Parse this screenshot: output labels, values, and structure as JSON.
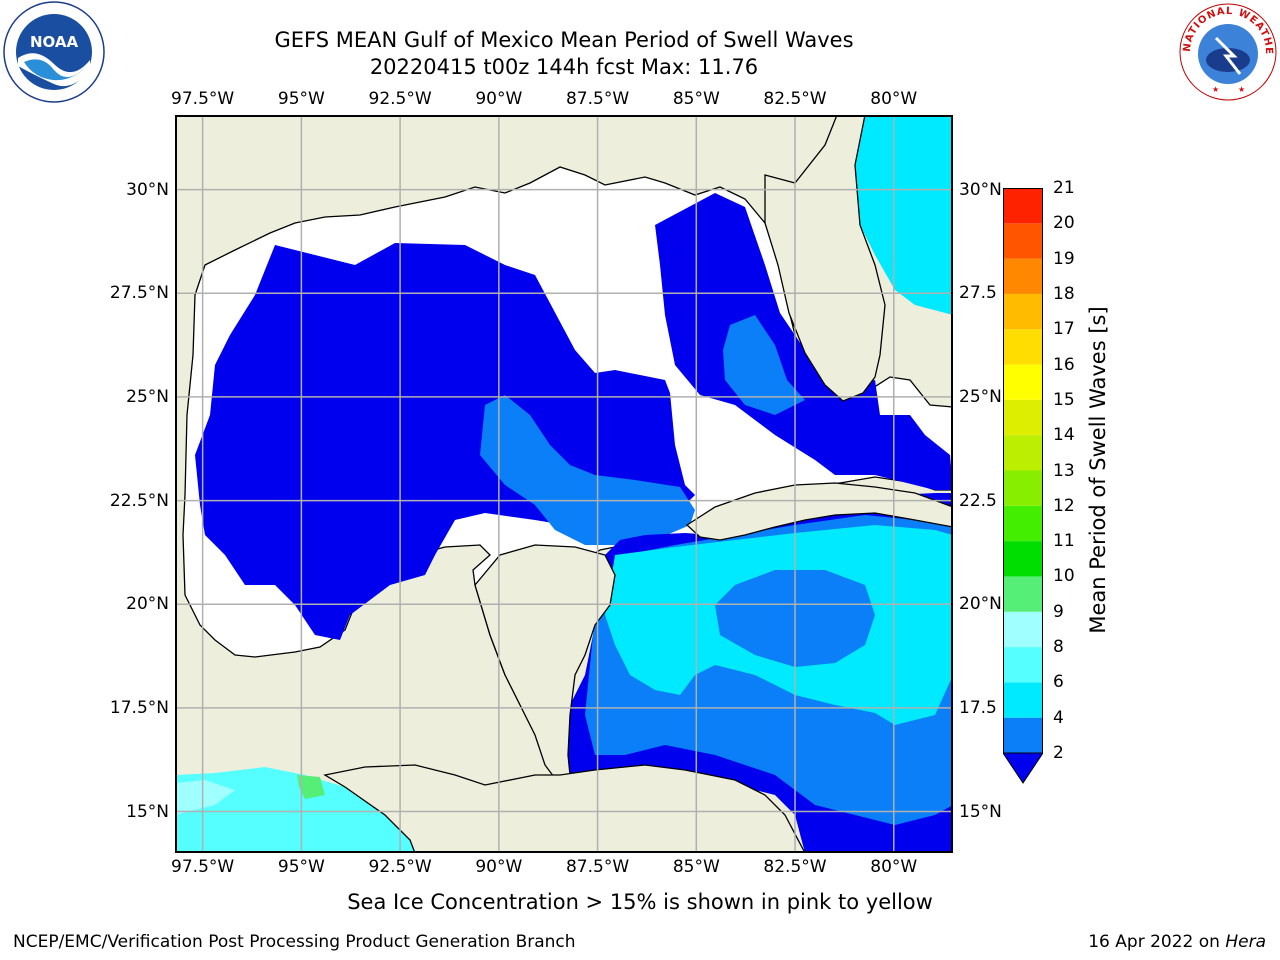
{
  "header": {
    "title_line1": "GEFS MEAN Gulf of Mexico Mean Period of Swell Waves",
    "title_line2": "20220415 t00z 144h fcst   Max: 11.76"
  },
  "logos": {
    "left": "NOAA",
    "right": "NATIONAL WEATHER SERVICE"
  },
  "map": {
    "lon_labels": [
      "97.5°W",
      "95°W",
      "92.5°W",
      "90°W",
      "87.5°W",
      "85°W",
      "82.5°W",
      "80°W"
    ],
    "lon_values": [
      -97.5,
      -95,
      -92.5,
      -90,
      -87.5,
      -85,
      -82.5,
      -80
    ],
    "lat_labels": [
      "30°N",
      "27.5°N",
      "25°N",
      "22.5°N",
      "20°N",
      "17.5°N",
      "15°N"
    ],
    "lat_labels_right": [
      "30°N",
      "27.5",
      "25°N",
      "22.5",
      "20°N",
      "17.5",
      "15°N"
    ],
    "lat_values": [
      30,
      27.5,
      25,
      22.5,
      20,
      17.5,
      15
    ],
    "extent": {
      "lon_min": -98.2,
      "lon_max": -78.5,
      "lat_min": 14.0,
      "lat_max": 31.8
    },
    "colors": {
      "land": "#eeeedc",
      "ocean_no_data": "#ffffff",
      "grid": "#b0b0b0",
      "coast": "#000000"
    }
  },
  "colorbar": {
    "label": "Mean Period of Swell Waves [s]",
    "ticks": [
      "2",
      "4",
      "6",
      "8",
      "9",
      "10",
      "11",
      "12",
      "13",
      "14",
      "15",
      "16",
      "17",
      "18",
      "19",
      "20",
      "21"
    ],
    "levels": [
      2,
      4,
      6,
      8,
      9,
      10,
      11,
      12,
      13,
      14,
      15,
      16,
      17,
      18,
      19,
      20,
      21
    ],
    "colors": [
      "#0a7ff8",
      "#00eaff",
      "#55ffff",
      "#a0ffff",
      "#55ee77",
      "#00dd00",
      "#44ee00",
      "#88ee00",
      "#bbee00",
      "#ddee00",
      "#ffff00",
      "#ffdd00",
      "#ffbb00",
      "#ff8800",
      "#ff5500",
      "#ff2200"
    ],
    "under_color": "#0000ee"
  },
  "notes": {
    "ice": "Sea Ice Concentration > 15% is shown in pink to yellow"
  },
  "footer": {
    "left": "NCEP/EMC/Verification Post Processing Product Generation Branch",
    "date": "16 Apr 2022 on ",
    "machine": "Hera"
  }
}
